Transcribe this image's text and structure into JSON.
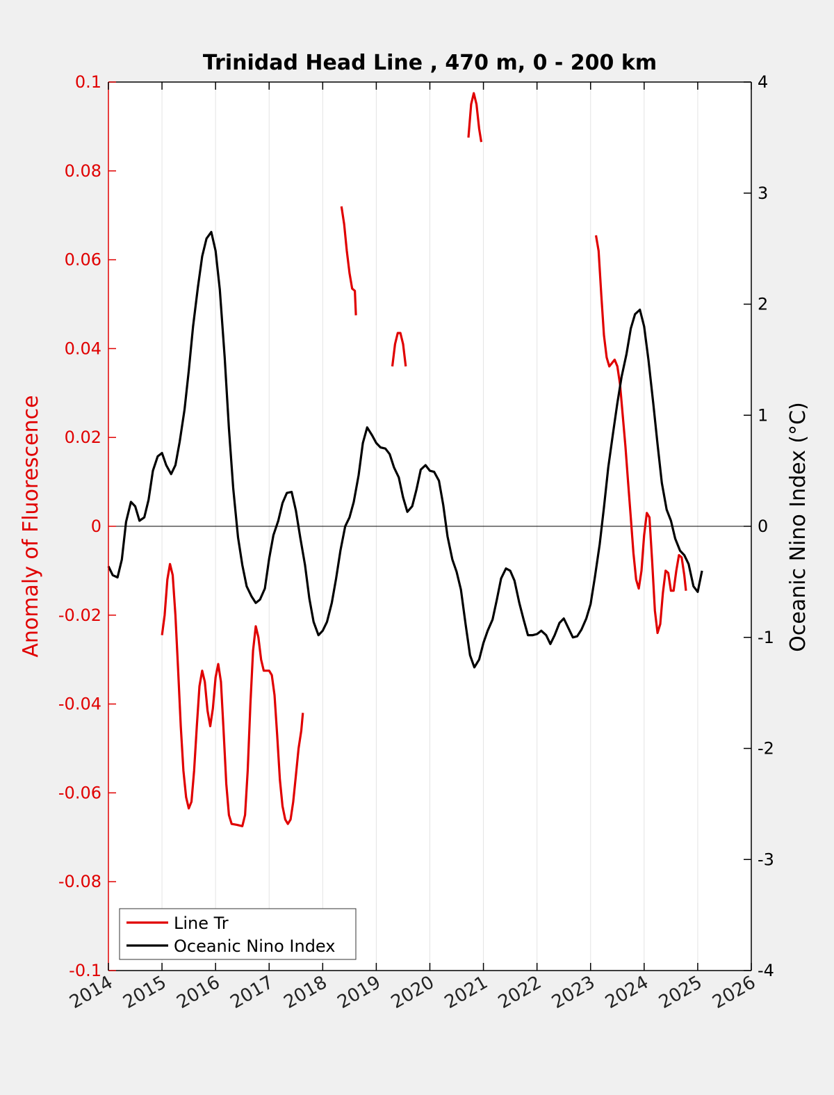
{
  "chart_data": {
    "type": "line",
    "title": "Trinidad Head Line , 470 m, 0 - 200 km",
    "xlabel": "",
    "xlim": [
      2014,
      2026
    ],
    "x_ticks": [
      "2014",
      "2015",
      "2016",
      "2017",
      "2018",
      "2019",
      "2020",
      "2021",
      "2022",
      "2023",
      "2024",
      "2025",
      "2026"
    ],
    "grid": "vertical",
    "legend": "bottom-left",
    "y_left": {
      "label": "Anomaly of Fluorescence",
      "ylim": [
        -0.1,
        0.1
      ],
      "ticks": [
        "0.1",
        "0.08",
        "0.06",
        "0.04",
        "0.02",
        "0",
        "-0.02",
        "-0.04",
        "-0.06",
        "-0.08",
        "-0.1"
      ],
      "color": "#e00000"
    },
    "y_right": {
      "label": "Oceanic Nino Index (°C)",
      "ylim": [
        -4,
        4
      ],
      "ticks": [
        "4",
        "3",
        "2",
        "1",
        "0",
        "-1",
        "-2",
        "-3",
        "-4"
      ],
      "color": "#000000"
    },
    "series": [
      {
        "name": "Line Tr",
        "color": "#e00000",
        "axis": "left",
        "segments": [
          [
            [
              2015.0,
              -0.0245
            ],
            [
              2015.05,
              -0.02
            ],
            [
              2015.1,
              -0.012
            ],
            [
              2015.15,
              -0.0085
            ],
            [
              2015.2,
              -0.011
            ],
            [
              2015.25,
              -0.02
            ],
            [
              2015.3,
              -0.032
            ],
            [
              2015.35,
              -0.045
            ],
            [
              2015.4,
              -0.055
            ],
            [
              2015.45,
              -0.061
            ],
            [
              2015.5,
              -0.0635
            ],
            [
              2015.55,
              -0.062
            ],
            [
              2015.6,
              -0.055
            ],
            [
              2015.65,
              -0.045
            ],
            [
              2015.7,
              -0.036
            ],
            [
              2015.75,
              -0.0325
            ],
            [
              2015.8,
              -0.035
            ],
            [
              2015.85,
              -0.0415
            ],
            [
              2015.9,
              -0.045
            ],
            [
              2015.95,
              -0.041
            ],
            [
              2016.0,
              -0.034
            ],
            [
              2016.05,
              -0.031
            ],
            [
              2016.1,
              -0.035
            ],
            [
              2016.15,
              -0.046
            ],
            [
              2016.2,
              -0.058
            ],
            [
              2016.25,
              -0.065
            ],
            [
              2016.3,
              -0.067
            ],
            [
              2016.4,
              -0.0672
            ],
            [
              2016.5,
              -0.0675
            ],
            [
              2016.55,
              -0.065
            ],
            [
              2016.6,
              -0.055
            ],
            [
              2016.65,
              -0.04
            ],
            [
              2016.7,
              -0.028
            ],
            [
              2016.75,
              -0.0225
            ],
            [
              2016.8,
              -0.025
            ],
            [
              2016.85,
              -0.03
            ],
            [
              2016.9,
              -0.0325
            ],
            [
              2016.95,
              -0.0325
            ],
            [
              2017.0,
              -0.0325
            ],
            [
              2017.05,
              -0.0335
            ],
            [
              2017.1,
              -0.038
            ],
            [
              2017.15,
              -0.047
            ],
            [
              2017.2,
              -0.057
            ],
            [
              2017.25,
              -0.063
            ],
            [
              2017.3,
              -0.066
            ],
            [
              2017.35,
              -0.067
            ],
            [
              2017.4,
              -0.066
            ],
            [
              2017.45,
              -0.062
            ],
            [
              2017.5,
              -0.056
            ],
            [
              2017.55,
              -0.05
            ],
            [
              2017.6,
              -0.046
            ],
            [
              2017.63,
              -0.042
            ]
          ],
          [
            [
              2018.35,
              0.072
            ],
            [
              2018.4,
              0.068
            ],
            [
              2018.45,
              0.062
            ],
            [
              2018.5,
              0.057
            ],
            [
              2018.55,
              0.0535
            ],
            [
              2018.6,
              0.053
            ],
            [
              2018.62,
              0.0475
            ]
          ],
          [
            [
              2019.3,
              0.036
            ],
            [
              2019.35,
              0.041
            ],
            [
              2019.4,
              0.0435
            ],
            [
              2019.45,
              0.0435
            ],
            [
              2019.5,
              0.041
            ],
            [
              2019.55,
              0.036
            ]
          ],
          [
            [
              2020.72,
              0.0875
            ],
            [
              2020.77,
              0.095
            ],
            [
              2020.82,
              0.0975
            ],
            [
              2020.87,
              0.095
            ],
            [
              2020.92,
              0.0895
            ],
            [
              2020.96,
              0.0865
            ]
          ],
          [
            [
              2023.1,
              0.0655
            ],
            [
              2023.15,
              0.062
            ],
            [
              2023.2,
              0.052
            ],
            [
              2023.25,
              0.043
            ],
            [
              2023.3,
              0.038
            ],
            [
              2023.35,
              0.036
            ],
            [
              2023.45,
              0.0375
            ],
            [
              2023.5,
              0.036
            ],
            [
              2023.55,
              0.032
            ],
            [
              2023.6,
              0.025
            ],
            [
              2023.65,
              0.018
            ],
            [
              2023.7,
              0.01
            ],
            [
              2023.75,
              0.002
            ],
            [
              2023.8,
              -0.006
            ],
            [
              2023.85,
              -0.012
            ],
            [
              2023.9,
              -0.014
            ],
            [
              2023.95,
              -0.01
            ],
            [
              2024.0,
              -0.002
            ],
            [
              2024.05,
              0.003
            ],
            [
              2024.1,
              0.002
            ],
            [
              2024.15,
              -0.008
            ],
            [
              2024.2,
              -0.019
            ],
            [
              2024.25,
              -0.024
            ],
            [
              2024.3,
              -0.022
            ],
            [
              2024.35,
              -0.015
            ],
            [
              2024.4,
              -0.01
            ],
            [
              2024.45,
              -0.0105
            ],
            [
              2024.5,
              -0.0145
            ],
            [
              2024.55,
              -0.0145
            ],
            [
              2024.6,
              -0.01
            ],
            [
              2024.65,
              -0.0065
            ],
            [
              2024.7,
              -0.007
            ],
            [
              2024.75,
              -0.011
            ],
            [
              2024.78,
              -0.0145
            ]
          ]
        ]
      },
      {
        "name": "Oceanic Nino Index",
        "color": "#000000",
        "axis": "right",
        "segments": [
          [
            [
              2014.0,
              -0.36
            ],
            [
              2014.08,
              -0.44
            ],
            [
              2014.17,
              -0.46
            ],
            [
              2014.25,
              -0.3
            ],
            [
              2014.33,
              0.04
            ],
            [
              2014.42,
              0.22
            ],
            [
              2014.5,
              0.18
            ],
            [
              2014.58,
              0.05
            ],
            [
              2014.67,
              0.08
            ],
            [
              2014.75,
              0.24
            ],
            [
              2014.83,
              0.5
            ],
            [
              2014.92,
              0.63
            ],
            [
              2015.0,
              0.66
            ],
            [
              2015.08,
              0.55
            ],
            [
              2015.17,
              0.47
            ],
            [
              2015.25,
              0.55
            ],
            [
              2015.33,
              0.76
            ],
            [
              2015.42,
              1.05
            ],
            [
              2015.5,
              1.4
            ],
            [
              2015.58,
              1.8
            ],
            [
              2015.67,
              2.15
            ],
            [
              2015.75,
              2.43
            ],
            [
              2015.83,
              2.59
            ],
            [
              2015.92,
              2.65
            ],
            [
              2016.0,
              2.48
            ],
            [
              2016.08,
              2.13
            ],
            [
              2016.17,
              1.52
            ],
            [
              2016.25,
              0.88
            ],
            [
              2016.33,
              0.34
            ],
            [
              2016.42,
              -0.1
            ],
            [
              2016.5,
              -0.35
            ],
            [
              2016.58,
              -0.54
            ],
            [
              2016.67,
              -0.63
            ],
            [
              2016.75,
              -0.69
            ],
            [
              2016.83,
              -0.66
            ],
            [
              2016.92,
              -0.56
            ],
            [
              2017.0,
              -0.29
            ],
            [
              2017.08,
              -0.08
            ],
            [
              2017.17,
              0.05
            ],
            [
              2017.25,
              0.21
            ],
            [
              2017.33,
              0.3
            ],
            [
              2017.42,
              0.31
            ],
            [
              2017.5,
              0.14
            ],
            [
              2017.58,
              -0.1
            ],
            [
              2017.67,
              -0.35
            ],
            [
              2017.75,
              -0.65
            ],
            [
              2017.83,
              -0.86
            ],
            [
              2017.92,
              -0.98
            ],
            [
              2018.0,
              -0.94
            ],
            [
              2018.08,
              -0.86
            ],
            [
              2018.17,
              -0.69
            ],
            [
              2018.25,
              -0.47
            ],
            [
              2018.33,
              -0.22
            ],
            [
              2018.42,
              0.0
            ],
            [
              2018.5,
              0.08
            ],
            [
              2018.58,
              0.22
            ],
            [
              2018.67,
              0.46
            ],
            [
              2018.75,
              0.75
            ],
            [
              2018.83,
              0.89
            ],
            [
              2018.92,
              0.82
            ],
            [
              2019.0,
              0.75
            ],
            [
              2019.08,
              0.71
            ],
            [
              2019.17,
              0.7
            ],
            [
              2019.25,
              0.65
            ],
            [
              2019.33,
              0.53
            ],
            [
              2019.42,
              0.44
            ],
            [
              2019.5,
              0.26
            ],
            [
              2019.58,
              0.13
            ],
            [
              2019.67,
              0.18
            ],
            [
              2019.75,
              0.33
            ],
            [
              2019.83,
              0.51
            ],
            [
              2019.92,
              0.55
            ],
            [
              2020.0,
              0.5
            ],
            [
              2020.08,
              0.49
            ],
            [
              2020.17,
              0.41
            ],
            [
              2020.25,
              0.19
            ],
            [
              2020.33,
              -0.09
            ],
            [
              2020.42,
              -0.3
            ],
            [
              2020.5,
              -0.41
            ],
            [
              2020.58,
              -0.57
            ],
            [
              2020.67,
              -0.89
            ],
            [
              2020.75,
              -1.16
            ],
            [
              2020.83,
              -1.27
            ],
            [
              2020.92,
              -1.2
            ],
            [
              2021.0,
              -1.05
            ],
            [
              2021.08,
              -0.94
            ],
            [
              2021.17,
              -0.84
            ],
            [
              2021.25,
              -0.66
            ],
            [
              2021.33,
              -0.47
            ],
            [
              2021.42,
              -0.38
            ],
            [
              2021.5,
              -0.4
            ],
            [
              2021.58,
              -0.49
            ],
            [
              2021.67,
              -0.69
            ],
            [
              2021.75,
              -0.84
            ],
            [
              2021.83,
              -0.98
            ],
            [
              2021.92,
              -0.98
            ],
            [
              2022.0,
              -0.97
            ],
            [
              2022.08,
              -0.94
            ],
            [
              2022.17,
              -0.98
            ],
            [
              2022.25,
              -1.06
            ],
            [
              2022.33,
              -0.98
            ],
            [
              2022.42,
              -0.87
            ],
            [
              2022.5,
              -0.83
            ],
            [
              2022.58,
              -0.91
            ],
            [
              2022.67,
              -1.0
            ],
            [
              2022.75,
              -0.99
            ],
            [
              2022.83,
              -0.93
            ],
            [
              2022.92,
              -0.83
            ],
            [
              2023.0,
              -0.7
            ],
            [
              2023.08,
              -0.46
            ],
            [
              2023.17,
              -0.16
            ],
            [
              2023.25,
              0.17
            ],
            [
              2023.33,
              0.53
            ],
            [
              2023.42,
              0.84
            ],
            [
              2023.5,
              1.11
            ],
            [
              2023.58,
              1.35
            ],
            [
              2023.67,
              1.55
            ],
            [
              2023.75,
              1.78
            ],
            [
              2023.83,
              1.91
            ],
            [
              2023.92,
              1.95
            ],
            [
              2024.0,
              1.8
            ],
            [
              2024.08,
              1.5
            ],
            [
              2024.17,
              1.11
            ],
            [
              2024.25,
              0.74
            ],
            [
              2024.33,
              0.39
            ],
            [
              2024.42,
              0.15
            ],
            [
              2024.5,
              0.05
            ],
            [
              2024.58,
              -0.11
            ],
            [
              2024.67,
              -0.22
            ],
            [
              2024.75,
              -0.26
            ],
            [
              2024.83,
              -0.34
            ],
            [
              2024.92,
              -0.54
            ],
            [
              2025.0,
              -0.59
            ],
            [
              2025.08,
              -0.4
            ]
          ]
        ]
      }
    ]
  }
}
